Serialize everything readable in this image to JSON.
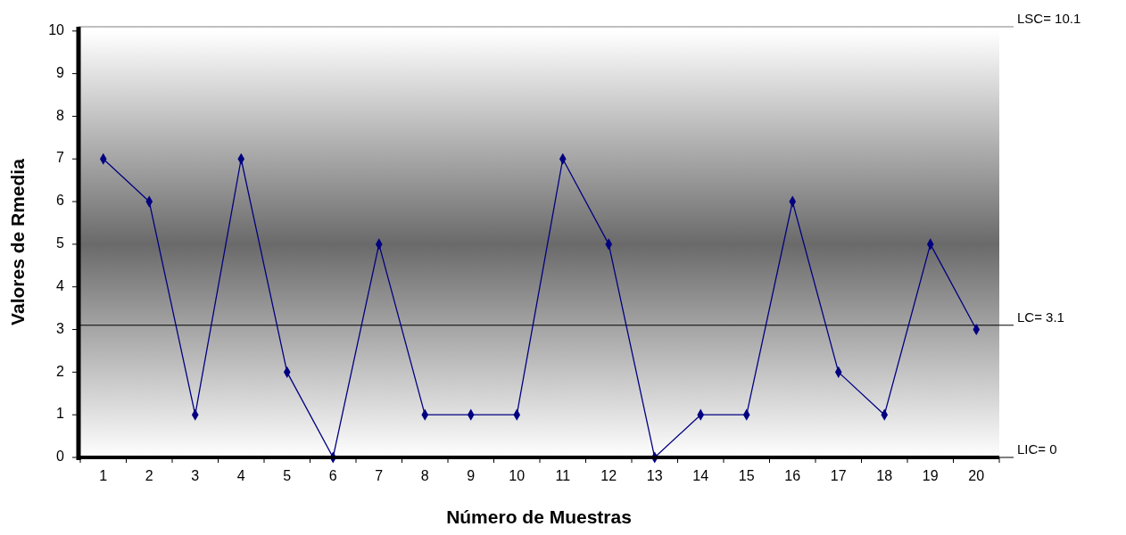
{
  "chart_data": {
    "type": "line",
    "xlabel": "Número de Muestras",
    "ylabel": "Valores de Rmedia",
    "categories": [
      "1",
      "2",
      "3",
      "4",
      "5",
      "6",
      "7",
      "8",
      "9",
      "10",
      "11",
      "12",
      "13",
      "14",
      "15",
      "16",
      "17",
      "18",
      "19",
      "20"
    ],
    "series": [
      {
        "color": "#000080",
        "values": [
          7,
          6,
          1,
          7,
          2,
          0,
          5,
          1,
          1,
          1,
          7,
          5,
          0,
          1,
          1,
          6,
          2,
          1,
          5,
          3
        ]
      }
    ],
    "ylim": [
      0,
      10.1
    ],
    "yticks": [
      0,
      1,
      2,
      3,
      4,
      5,
      6,
      7,
      8,
      9,
      10
    ],
    "ref_lines": [
      {
        "axis": "y",
        "value": 10.1,
        "label": "LSC= 10.1",
        "color": "#808080"
      },
      {
        "axis": "y",
        "value": 3.1,
        "label": "LC= 3.1",
        "color": "#000000"
      },
      {
        "axis": "y",
        "value": 0,
        "label": "LIC= 0",
        "color": "#000000"
      }
    ],
    "marker": "diamond",
    "line_style": "solid"
  }
}
